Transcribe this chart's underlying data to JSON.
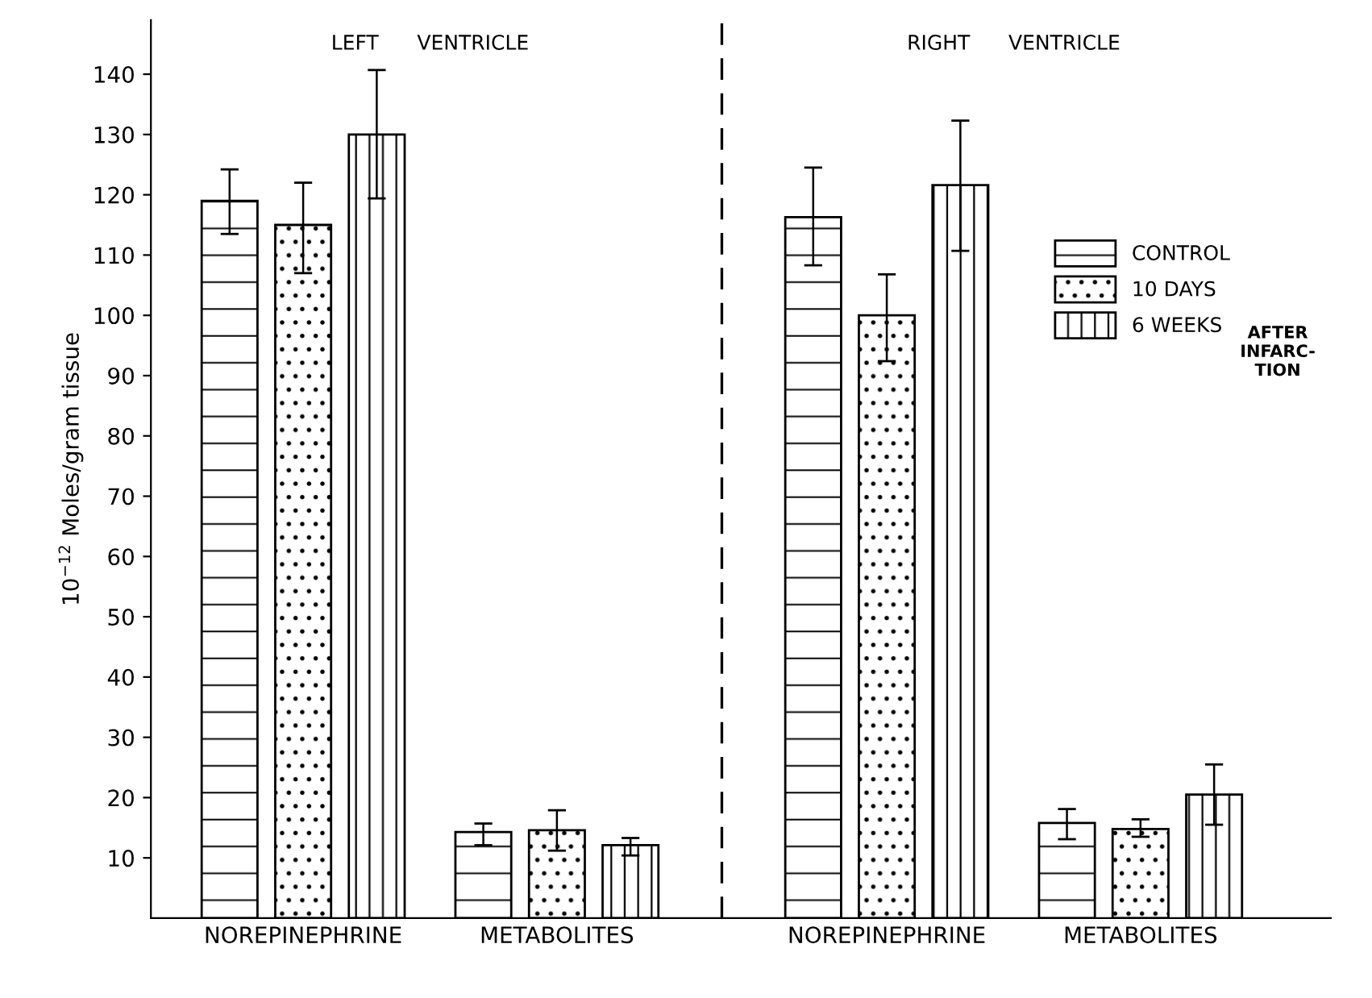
{
  "chart_data": {
    "type": "bar",
    "ylabel": "10$^{−12}$ Moles/gram tissue",
    "categories": [
      "NOREPINEPHRINE",
      "METABOLITES",
      "NOREPINEPHRINE",
      "METABOLITES"
    ],
    "series": [
      {
        "name": "CONTROL",
        "color": "#000000",
        "values": [
          119,
          14.3,
          116.3,
          15.8
        ],
        "errors": [
          [
            113.5,
            124.2
          ],
          [
            12.1,
            15.7
          ],
          [
            108.3,
            124.5
          ],
          [
            13.1,
            18.1
          ]
        ]
      },
      {
        "name": "10 DAYS",
        "color": "#000000",
        "values": [
          115,
          14.6,
          100,
          14.8
        ],
        "errors": [
          [
            107,
            122
          ],
          [
            11.2,
            17.9
          ],
          [
            92.4,
            106.8
          ],
          [
            13.5,
            16.4
          ]
        ]
      },
      {
        "name": "6 WEEKS",
        "color": "#000000",
        "values": [
          130,
          12.1,
          121.6,
          20.5
        ],
        "errors": [
          [
            119.4,
            140.7
          ],
          [
            10.4,
            13.3
          ],
          [
            110.7,
            132.3
          ],
          [
            15.5,
            25.5
          ]
        ]
      }
    ],
    "ylim": [
      0,
      149
    ],
    "yticks": [
      10,
      20,
      30,
      40,
      50,
      60,
      70,
      80,
      90,
      100,
      110,
      120,
      130,
      140
    ],
    "annotations": [
      "LEFT      VENTRICLE",
      "RIGHT      VENTRICLE",
      "AFTER\nINFARC-\nTION"
    ],
    "legend": "right",
    "grid": false
  }
}
